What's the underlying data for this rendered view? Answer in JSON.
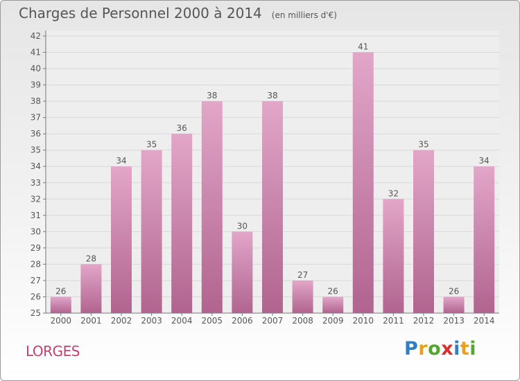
{
  "title": "Charges de Personnel 2000 à 2014",
  "unit": "(en milliers d'€)",
  "commune": "LORGES",
  "logo": {
    "text": "Proxiti",
    "letters": [
      {
        "ch": "P",
        "color": "#2f7fc2"
      },
      {
        "ch": "r",
        "color": "#e8a020"
      },
      {
        "ch": "o",
        "color": "#54a62e"
      },
      {
        "ch": "x",
        "color": "#d8302c"
      },
      {
        "ch": "i",
        "color": "#2f7fc2"
      },
      {
        "ch": "t",
        "color": "#e8a020"
      },
      {
        "ch": "i",
        "color": "#54a62e"
      }
    ]
  },
  "colors": {
    "bar_top": "#e2a6c8",
    "bar_bottom": "#b0648f",
    "commune": "#c0436f",
    "text": "#555555",
    "grid": "#d8d8d8"
  },
  "chart_data": {
    "type": "bar",
    "categories": [
      "2000",
      "2001",
      "2002",
      "2003",
      "2004",
      "2005",
      "2006",
      "2007",
      "2008",
      "2009",
      "2010",
      "2011",
      "2012",
      "2013",
      "2014"
    ],
    "values": [
      26,
      28,
      34,
      35,
      36,
      38,
      30,
      38,
      27,
      26,
      41,
      32,
      35,
      26,
      34
    ],
    "ylim": [
      25,
      42
    ],
    "yticks": [
      25,
      26,
      27,
      28,
      29,
      30,
      31,
      32,
      33,
      34,
      35,
      36,
      37,
      38,
      39,
      40,
      41,
      42
    ],
    "xlabel": "",
    "ylabel": "",
    "grid": true
  }
}
